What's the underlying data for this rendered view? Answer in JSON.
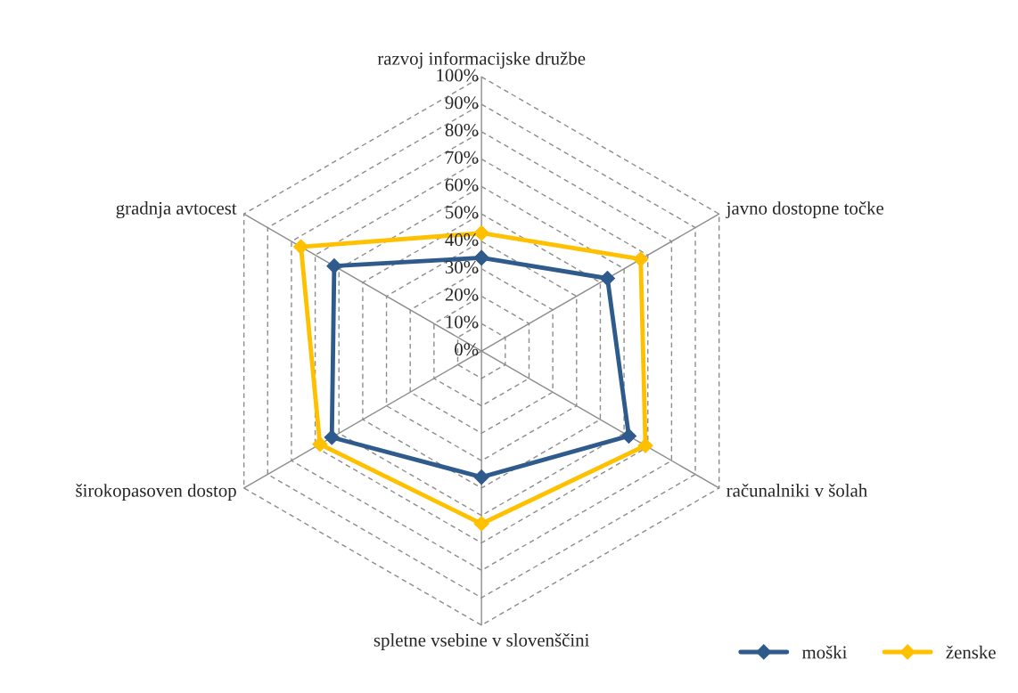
{
  "chart_data": {
    "type": "radar",
    "categories": [
      "razvoj informacijske družbe",
      "javno dostopne točke",
      "računalniki v šolah",
      "spletne vsebine v slovenščini",
      "širokopasoven dostop",
      "gradnja avtocest"
    ],
    "series": [
      {
        "name": "moški",
        "color": "#2f5b8c",
        "values": [
          0.34,
          0.53,
          0.62,
          0.46,
          0.63,
          0.62
        ]
      },
      {
        "name": "ženske",
        "color": "#ffc000",
        "values": [
          0.43,
          0.67,
          0.69,
          0.63,
          0.68,
          0.76
        ]
      }
    ],
    "ylim": [
      0,
      1
    ],
    "yticks": [
      {
        "value": 0,
        "label": "0%"
      },
      {
        "value": 0.1,
        "label": "10%"
      },
      {
        "value": 0.2,
        "label": "20%"
      },
      {
        "value": 0.3,
        "label": "30%"
      },
      {
        "value": 0.4,
        "label": "40%"
      },
      {
        "value": 0.5,
        "label": "50%"
      },
      {
        "value": 0.6,
        "label": "60%"
      },
      {
        "value": 0.7,
        "label": "70%"
      },
      {
        "value": 0.8,
        "label": "80%"
      },
      {
        "value": 0.9,
        "label": "90%"
      },
      {
        "value": 1,
        "label": "100%"
      }
    ],
    "grid": true,
    "marker": "diamond",
    "line_style": "solid",
    "legend": "bottom right"
  }
}
